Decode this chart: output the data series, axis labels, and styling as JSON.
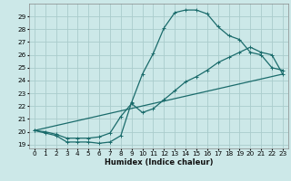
{
  "xlabel": "Humidex (Indice chaleur)",
  "background_color": "#cce8e8",
  "grid_color": "#aacccc",
  "line_color": "#1a6b6b",
  "xlim": [
    -0.5,
    23.5
  ],
  "ylim": [
    18.7,
    30.0
  ],
  "xticks": [
    0,
    1,
    2,
    3,
    4,
    5,
    6,
    7,
    8,
    9,
    10,
    11,
    12,
    13,
    14,
    15,
    16,
    17,
    18,
    19,
    20,
    21,
    22,
    23
  ],
  "yticks": [
    19,
    20,
    21,
    22,
    23,
    24,
    25,
    26,
    27,
    28,
    29
  ],
  "curve1_x": [
    0,
    1,
    2,
    3,
    4,
    5,
    6,
    7,
    8,
    9,
    10,
    11,
    12,
    13,
    14,
    15,
    16,
    17,
    18,
    19,
    20,
    21,
    22,
    23
  ],
  "curve1_y": [
    20.1,
    19.9,
    19.7,
    19.2,
    19.2,
    19.2,
    19.1,
    19.2,
    19.7,
    22.3,
    24.5,
    26.1,
    28.1,
    29.3,
    29.5,
    29.5,
    29.2,
    28.2,
    27.5,
    27.2,
    26.2,
    26.0,
    25.0,
    24.8
  ],
  "curve2_x": [
    0,
    23
  ],
  "curve2_y": [
    20.1,
    24.5
  ],
  "curve3_x": [
    0,
    1,
    2,
    3,
    4,
    5,
    6,
    7,
    8,
    9,
    10,
    11,
    12,
    13,
    14,
    15,
    16,
    17,
    18,
    19,
    20,
    21,
    22,
    23
  ],
  "curve3_y": [
    20.1,
    20.0,
    19.8,
    19.5,
    19.5,
    19.5,
    19.6,
    19.9,
    21.2,
    22.2,
    21.5,
    21.8,
    22.5,
    23.2,
    23.9,
    24.3,
    24.8,
    25.4,
    25.8,
    26.2,
    26.6,
    26.2,
    26.0,
    24.5
  ],
  "xlabel_fontsize": 6.0,
  "tick_fontsize": 5.2
}
